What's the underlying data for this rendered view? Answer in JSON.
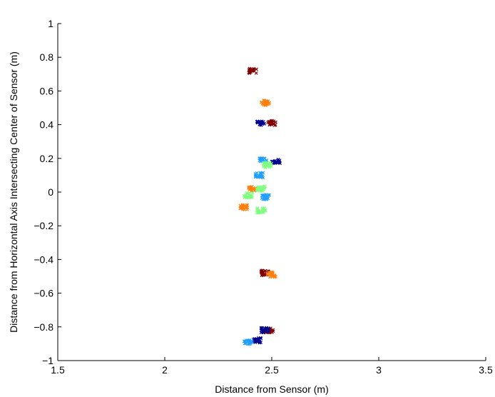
{
  "chart_data": {
    "type": "scatter",
    "title": "",
    "xlabel": "Distance from Sensor (m)",
    "ylabel": "Distance from Horizontal Axis Intersecting Center of Sensor (m)",
    "xlim": [
      1.5,
      3.5
    ],
    "ylim": [
      -1,
      1
    ],
    "xticks": [
      "1.5",
      "2",
      "2.5",
      "3",
      "3.5"
    ],
    "yticks": [
      "−1",
      "−0.8",
      "−0.6",
      "−0.4",
      "−0.2",
      "0",
      "0.2",
      "0.4",
      "0.6",
      "0.8",
      "1"
    ],
    "grid": false,
    "legend": "none",
    "colors": {
      "dark_red": "#800000",
      "orange": "#ff7f0e",
      "dark_blue": "#00008f",
      "light_blue": "#1f9fff",
      "light_green": "#7fff7f"
    },
    "series": [
      {
        "color_key": "dark_red",
        "points": [
          [
            2.41,
            0.72
          ],
          [
            2.5,
            0.41
          ],
          [
            2.47,
            -0.48
          ],
          [
            2.49,
            -0.82
          ]
        ]
      },
      {
        "color_key": "orange",
        "points": [
          [
            2.47,
            0.53
          ],
          [
            2.37,
            -0.09
          ],
          [
            2.41,
            0.02
          ],
          [
            2.5,
            -0.49
          ]
        ]
      },
      {
        "color_key": "dark_blue",
        "points": [
          [
            2.45,
            0.41
          ],
          [
            2.52,
            0.18
          ],
          [
            2.47,
            -0.82
          ],
          [
            2.43,
            -0.88
          ]
        ]
      },
      {
        "color_key": "light_blue",
        "points": [
          [
            2.46,
            0.19
          ],
          [
            2.44,
            0.1
          ],
          [
            2.47,
            -0.03
          ],
          [
            2.39,
            -0.89
          ]
        ]
      },
      {
        "color_key": "light_green",
        "points": [
          [
            2.48,
            0.16
          ],
          [
            2.45,
            0.02
          ],
          [
            2.39,
            -0.02
          ],
          [
            2.45,
            -0.11
          ]
        ]
      }
    ]
  }
}
